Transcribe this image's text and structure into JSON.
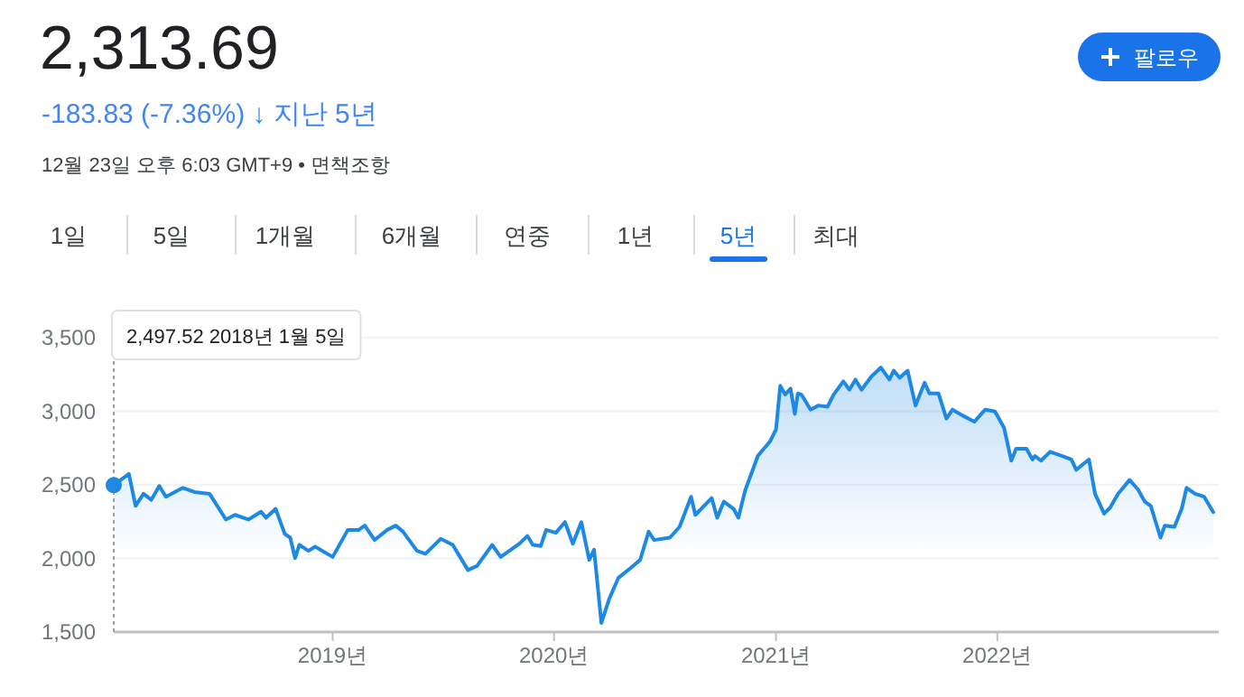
{
  "chart_data": {
    "type": "area",
    "title": "2,313.69",
    "subtitle": "-183.83 (-7.36%) ↓ 지난 5년",
    "annotations": [
      "12월 23일 오후 6:03 GMT+9 • 면책조항",
      "팔로우",
      "1일",
      "5일",
      "1개월",
      "6개월",
      "연중",
      "1년",
      "5년",
      "최대",
      "2,497.52  2018년 1월 5일"
    ],
    "x": [
      "2018-01-05",
      "2018-01-30",
      "2018-02-10",
      "2018-02-23",
      "2018-03-08",
      "2018-03-21",
      "2018-04-01",
      "2018-04-29",
      "2018-05-18",
      "2018-06-12",
      "2018-07-09",
      "2018-07-24",
      "2018-08-15",
      "2018-09-05",
      "2018-09-13",
      "2018-09-29",
      "2018-10-14",
      "2018-10-23",
      "2018-10-31",
      "2018-11-07",
      "2018-11-22",
      "2018-12-03",
      "2019-01-01",
      "2019-01-26",
      "2019-02-13",
      "2019-02-23",
      "2019-03-11",
      "2019-04-01",
      "2019-04-15",
      "2019-04-27",
      "2019-05-20",
      "2019-06-03",
      "2019-06-28",
      "2019-07-18",
      "2019-08-12",
      "2019-08-27",
      "2019-09-21",
      "2019-10-05",
      "2019-11-05",
      "2019-11-18",
      "2019-11-27",
      "2019-12-10",
      "2019-12-19",
      "2020-01-04",
      "2020-01-19",
      "2020-02-01",
      "2020-02-15",
      "2020-02-28",
      "2020-03-07",
      "2020-03-19",
      "2020-04-01",
      "2020-04-16",
      "2020-05-07",
      "2020-05-22",
      "2020-06-05",
      "2020-06-14",
      "2020-07-10",
      "2020-07-26",
      "2020-08-14",
      "2020-08-21",
      "2020-09-17",
      "2020-09-26",
      "2020-10-07",
      "2020-10-23",
      "2020-10-31",
      "2020-11-11",
      "2020-12-02",
      "2020-12-22",
      "2021-01-01",
      "2021-01-08",
      "2021-01-16",
      "2021-01-25",
      "2021-02-01",
      "2021-02-06",
      "2021-02-12",
      "2021-02-27",
      "2021-03-12",
      "2021-03-27",
      "2021-04-06",
      "2021-04-22",
      "2021-05-02",
      "2021-05-12",
      "2021-05-22",
      "2021-06-07",
      "2021-06-23",
      "2021-07-07",
      "2021-07-14",
      "2021-07-24",
      "2021-08-06",
      "2021-08-19",
      "2021-09-03",
      "2021-09-11",
      "2021-09-26",
      "2021-10-09",
      "2021-10-19",
      "2021-11-05",
      "2021-11-24",
      "2021-12-12",
      "2021-12-28",
      "2022-01-12",
      "2022-01-24",
      "2022-02-01",
      "2022-02-18",
      "2022-02-28",
      "2022-03-04",
      "2022-03-14",
      "2022-03-29",
      "2022-04-18",
      "2022-05-03",
      "2022-05-11",
      "2022-05-23",
      "2022-06-01",
      "2022-06-11",
      "2022-06-26",
      "2022-07-06",
      "2022-07-19",
      "2022-08-07",
      "2022-08-21",
      "2022-09-01",
      "2022-09-11",
      "2022-09-27",
      "2022-10-04",
      "2022-10-20",
      "2022-11-01",
      "2022-11-09",
      "2022-11-23",
      "2022-12-08",
      "2022-12-23"
    ],
    "series": [
      {
        "color": "#1e88e5",
        "values": [
          2498,
          2574,
          2357,
          2439,
          2398,
          2492,
          2419,
          2480,
          2451,
          2439,
          2264,
          2296,
          2264,
          2317,
          2276,
          2337,
          2166,
          2141,
          2002,
          2092,
          2051,
          2080,
          2010,
          2194,
          2194,
          2223,
          2125,
          2194,
          2223,
          2182,
          2051,
          2031,
          2133,
          2092,
          1921,
          1949,
          2092,
          2010,
          2100,
          2153,
          2092,
          2084,
          2194,
          2174,
          2247,
          2100,
          2247,
          1990,
          2059,
          1561,
          1725,
          1867,
          1937,
          1990,
          2182,
          2125,
          2141,
          2215,
          2419,
          2296,
          2410,
          2276,
          2386,
          2337,
          2276,
          2460,
          2696,
          2794,
          2876,
          3174,
          3113,
          3154,
          2982,
          3121,
          3113,
          3011,
          3039,
          3031,
          3113,
          3203,
          3146,
          3215,
          3146,
          3235,
          3297,
          3215,
          3276,
          3227,
          3276,
          3039,
          3194,
          3121,
          3121,
          2950,
          3011,
          2970,
          2929,
          3011,
          2999,
          2888,
          2664,
          2745,
          2745,
          2672,
          2696,
          2664,
          2725,
          2696,
          2672,
          2602,
          2643,
          2672,
          2439,
          2304,
          2345,
          2439,
          2533,
          2468,
          2386,
          2357,
          2141,
          2223,
          2215,
          2337,
          2480,
          2439,
          2419,
          2314
        ]
      }
    ],
    "xlim": [
      "2018-01-05",
      "2023-01-01"
    ],
    "xticks": [
      {
        "value": "2019-01-01",
        "label": "2019년"
      },
      {
        "value": "2020-01-01",
        "label": "2020년"
      },
      {
        "value": "2021-01-01",
        "label": "2021년"
      },
      {
        "value": "2022-01-01",
        "label": "2022년"
      }
    ],
    "ylim": [
      1500,
      3500
    ],
    "yticks": [
      {
        "value": 1500,
        "label": "1,500"
      },
      {
        "value": 2000,
        "label": "2,000"
      },
      {
        "value": 2500,
        "label": "2,500"
      },
      {
        "value": 3000,
        "label": "3,000"
      },
      {
        "value": 3500,
        "label": "3,500"
      }
    ],
    "grid": "y"
  }
}
